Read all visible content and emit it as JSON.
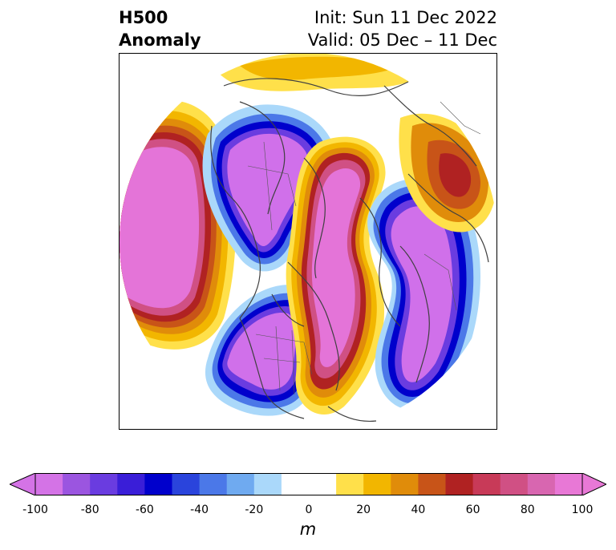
{
  "title": {
    "left_line1": "H500",
    "left_line2": "Anomaly",
    "right_line1": "Init: Sun 11 Dec 2022",
    "right_line2": "Valid: 05 Dec – 11 Dec"
  },
  "colorbar": {
    "unit": "m",
    "min": -100,
    "max": 100,
    "step": 10,
    "extend": "both",
    "tick_values": [
      -100,
      -80,
      -60,
      -40,
      -20,
      0,
      20,
      40,
      60,
      80,
      100
    ],
    "tick_labels": [
      "-100",
      "-80",
      "-60",
      "-40",
      "-20",
      "0",
      "20",
      "40",
      "60",
      "80",
      "100"
    ],
    "colors": [
      "#d473e6",
      "#9b55e0",
      "#6a3ce0",
      "#3a1ed8",
      "#0000cc",
      "#2a44dc",
      "#4b78e8",
      "#6faaf0",
      "#aad8fa",
      "#ffffff",
      "#ffffff",
      "#ffe04a",
      "#f2b600",
      "#e08c0a",
      "#c85418",
      "#b02222",
      "#c83a58",
      "#d05084",
      "#d866b0",
      "#e878d6"
    ],
    "under_color": "#d473e6",
    "over_color": "#e878d6"
  },
  "map": {
    "projection": "north-polar-stereographic",
    "field": "500 hPa geopotential height anomaly",
    "colors": {
      "strong_negative": "#d070ea",
      "strong_positive": "#e474d8",
      "blue": "#0000cc",
      "orange": "#e08c0a",
      "red": "#b02222",
      "yellow": "#ffe04a",
      "light_blue": "#aad8fa"
    }
  }
}
